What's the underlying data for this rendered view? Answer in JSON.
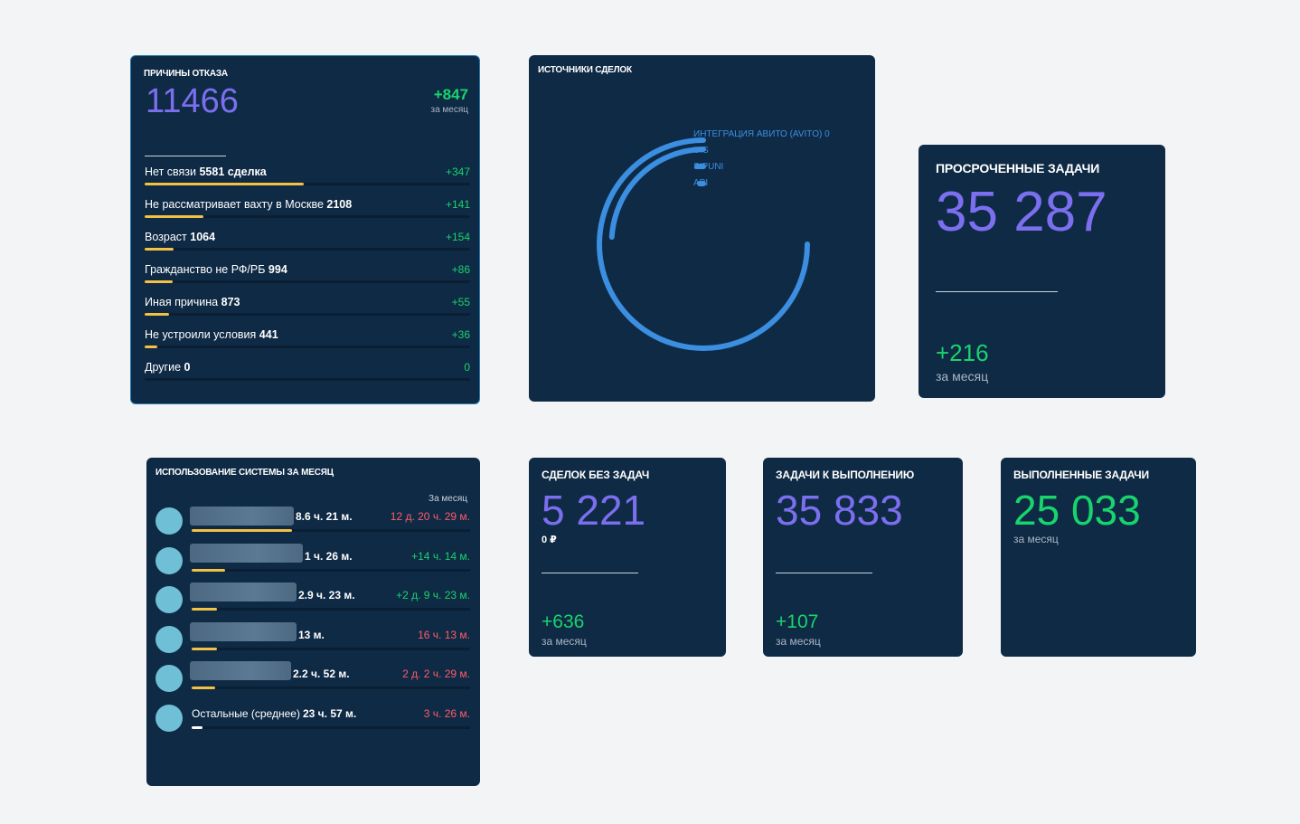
{
  "rejection": {
    "title": "ПРИЧИНЫ ОТКАЗА",
    "total": "11466",
    "delta": "+847",
    "delta_label": "за месяц",
    "rows": [
      {
        "label": "Нет связи",
        "value": "5581 сделка",
        "delta": "+347",
        "pct": 0.49
      },
      {
        "label": "Не рассматривает вахту в Москве",
        "value": "2108",
        "delta": "+141",
        "pct": 0.18
      },
      {
        "label": "Возраст",
        "value": "1064",
        "delta": "+154",
        "pct": 0.09
      },
      {
        "label": "Гражданство не РФ/РБ",
        "value": "994",
        "delta": "+86",
        "pct": 0.085
      },
      {
        "label": "Иная причина",
        "value": "873",
        "delta": "+55",
        "pct": 0.075
      },
      {
        "label": "Не устроили условия",
        "value": "441",
        "delta": "+36",
        "pct": 0.04
      },
      {
        "label": "Другие",
        "value": "0",
        "delta": "0",
        "pct": 0
      }
    ]
  },
  "sources": {
    "title": "ИСТОЧНИКИ СДЕЛОК",
    "legend": [
      {
        "label": "ИНТЕГРАЦИЯ АВИТО (AVITO) 0",
        "color": "#3b8ee0"
      },
      {
        "label": "UIS",
        "color": "#3b8ee0"
      },
      {
        "label": "SIPUNI",
        "color": "#3b8ee0"
      },
      {
        "label": "API",
        "color": "#3b8ee0"
      }
    ]
  },
  "overdue": {
    "title": "ПРОСРОЧЕННЫЕ ЗАДАЧИ",
    "value": "35 287",
    "delta": "+216",
    "delta_label": "за месяц"
  },
  "usage": {
    "title": "ИСПОЛЬЗОВАНИЕ СИСТЕМЫ ЗА МЕСЯЦ",
    "period_label": "За месяц",
    "rows": [
      {
        "name": "",
        "value": "8.6 ч. 21 м.",
        "delta": "12 д. 20 ч. 29 м.",
        "delta_color": "red",
        "pct": 0.36
      },
      {
        "name": "",
        "value": "1 ч. 26 м.",
        "delta": "+14 ч. 14 м.",
        "delta_color": "green",
        "pct": 0.12
      },
      {
        "name": "",
        "value": "2.9 ч. 23 м.",
        "delta": "+2 д. 9 ч. 23 м.",
        "delta_color": "green",
        "pct": 0.09
      },
      {
        "name": "",
        "value": "13 м.",
        "delta": "16 ч. 13 м.",
        "delta_color": "red",
        "pct": 0.09
      },
      {
        "name": "",
        "value": "2.2 ч. 52 м.",
        "delta": "2 д. 2 ч. 29 м.",
        "delta_color": "red",
        "pct": 0.085
      },
      {
        "name": "Остальные (среднее)",
        "value": "23 ч. 57 м.",
        "delta": "3 ч. 26 м.",
        "delta_color": "red",
        "pct": 0.04
      }
    ]
  },
  "deals_no_tasks": {
    "title": "СДЕЛОК БЕЗ ЗАДАЧ",
    "value": "5 221",
    "money": "0 ₽",
    "delta": "+636",
    "delta_label": "за месяц"
  },
  "tasks_todo": {
    "title": "ЗАДАЧИ К ВЫПОЛНЕНИЮ",
    "value": "35 833",
    "delta": "+107",
    "delta_label": "за месяц"
  },
  "tasks_done": {
    "title": "ВЫПОЛНЕННЫЕ ЗАДАЧИ",
    "value": "25 033",
    "delta_label": "за месяц"
  }
}
